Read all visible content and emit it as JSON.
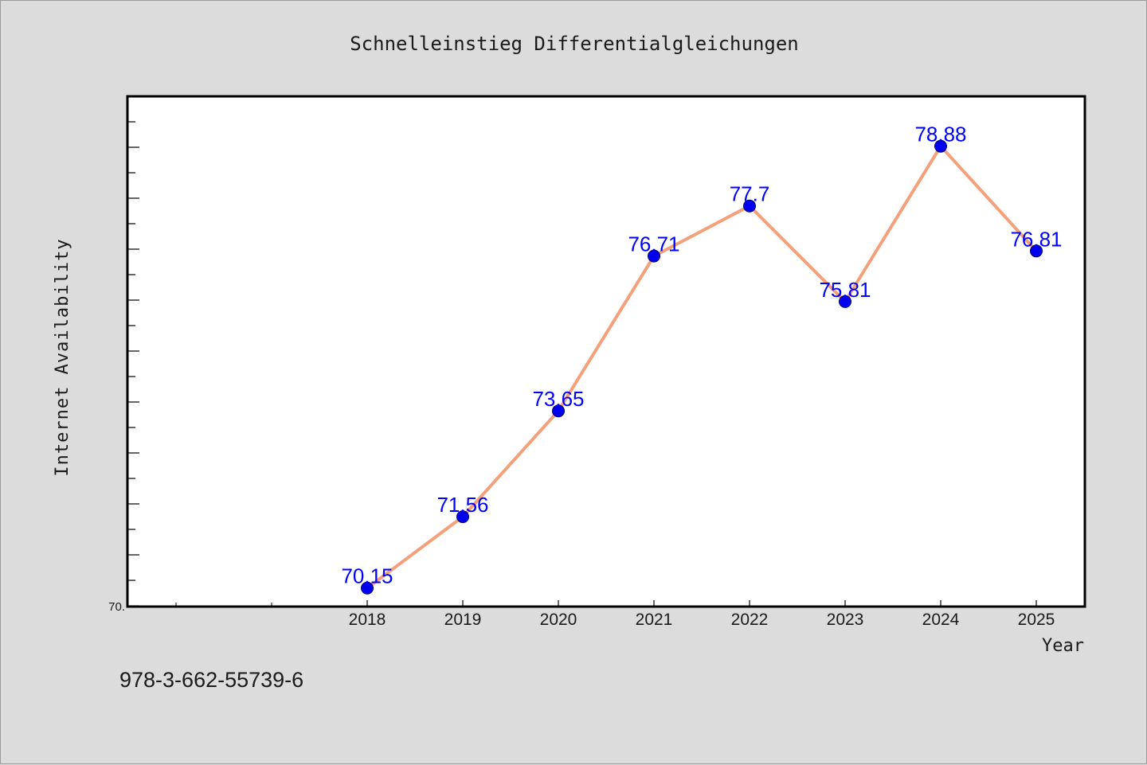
{
  "chart_data": {
    "type": "line",
    "title": "Schnelleinstieg Differentialgleichungen",
    "xlabel": "Year",
    "ylabel": "Internet Availability",
    "x": [
      2018,
      2019,
      2020,
      2021,
      2022,
      2023,
      2024,
      2025
    ],
    "x_tick_labels": [
      "2018",
      "2019",
      "2020",
      "2021",
      "2022",
      "2023",
      "2024",
      "2025"
    ],
    "x_range": [
      2015.5,
      2025.5
    ],
    "y_tick_labels": [
      "70."
    ],
    "y_range": [
      69.8,
      79.85
    ],
    "series": [
      {
        "values": [
          70.15,
          71.56,
          73.65,
          76.71,
          77.7,
          75.81,
          78.88,
          76.81
        ],
        "data_labels": [
          "70.15",
          "71.56",
          "73.65",
          "76.71",
          "77.7",
          "75.81",
          "78.88",
          "76.81"
        ],
        "line_color": "#f4a07a",
        "marker_color": "#0000ee",
        "label_color": "#0000ff"
      }
    ],
    "grid": false,
    "legend": "none"
  },
  "footer": {
    "isbn": "978-3-662-55739-6"
  }
}
